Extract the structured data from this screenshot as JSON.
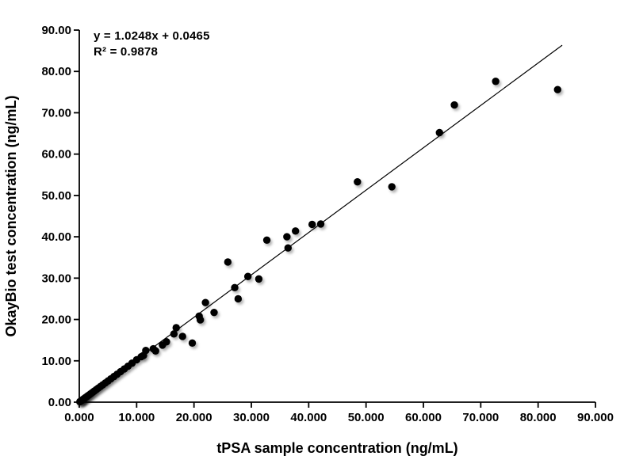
{
  "chart_data": {
    "type": "scatter",
    "title": "",
    "annotation": {
      "equation": "y = 1.0248x + 0.0465",
      "r_squared": "R² = 0.9878"
    },
    "xlabel": "tPSA sample concentration (ng/mL)",
    "ylabel": "OkayBio test concentration (ng/mL)",
    "xlim": [
      0,
      90
    ],
    "ylim": [
      0,
      90
    ],
    "x_ticks": [
      0,
      10,
      20,
      30,
      40,
      50,
      60,
      70,
      80,
      90
    ],
    "x_tick_labels": [
      "0.000",
      "10.000",
      "20.000",
      "30.000",
      "40.000",
      "50.000",
      "60.000",
      "70.000",
      "80.000",
      "90.000"
    ],
    "y_ticks": [
      0,
      10,
      20,
      30,
      40,
      50,
      60,
      70,
      80,
      90
    ],
    "y_tick_labels": [
      "0.00",
      "10.00",
      "20.00",
      "30.00",
      "40.00",
      "50.00",
      "60.00",
      "70.00",
      "80.00",
      "90.00"
    ],
    "grid": false,
    "legend": false,
    "point_color": "#000000",
    "line_color": "#000000",
    "axis_color": "#000000",
    "trendline": {
      "slope": 1.0248,
      "intercept": 0.0465,
      "x_start": 0,
      "x_end": 84.2
    },
    "points": [
      [
        0.1,
        0.1
      ],
      [
        0.2,
        0.21
      ],
      [
        0.31,
        0.32
      ],
      [
        0.42,
        0.43
      ],
      [
        0.55,
        0.56
      ],
      [
        0.7,
        0.72
      ],
      [
        0.88,
        0.9
      ],
      [
        1.05,
        1.08
      ],
      [
        1.25,
        1.28
      ],
      [
        1.5,
        1.54
      ],
      [
        1.75,
        1.79
      ],
      [
        2.0,
        2.05
      ],
      [
        2.3,
        2.36
      ],
      [
        2.6,
        2.66
      ],
      [
        2.95,
        3.02
      ],
      [
        3.3,
        3.38
      ],
      [
        3.7,
        3.79
      ],
      [
        4.1,
        4.2
      ],
      [
        4.55,
        4.66
      ],
      [
        5.0,
        5.12
      ],
      [
        5.5,
        5.64
      ],
      [
        6.05,
        6.2
      ],
      [
        6.6,
        6.76
      ],
      [
        7.2,
        7.38
      ],
      [
        7.85,
        8.04
      ],
      [
        8.5,
        8.71
      ],
      [
        9.2,
        9.43
      ],
      [
        10.0,
        10.25
      ],
      [
        10.8,
        11.0
      ],
      [
        11.2,
        11.3
      ],
      [
        11.6,
        12.5
      ],
      [
        12.9,
        12.9
      ],
      [
        13.3,
        12.4
      ],
      [
        14.5,
        13.8
      ],
      [
        15.2,
        14.6
      ],
      [
        16.5,
        16.5
      ],
      [
        16.9,
        18.0
      ],
      [
        18.0,
        15.9
      ],
      [
        19.7,
        14.3
      ],
      [
        20.9,
        20.8
      ],
      [
        21.1,
        19.9
      ],
      [
        22.0,
        24.1
      ],
      [
        23.5,
        21.7
      ],
      [
        25.9,
        33.9
      ],
      [
        27.1,
        27.7
      ],
      [
        27.7,
        25.0
      ],
      [
        29.4,
        30.4
      ],
      [
        31.3,
        29.8
      ],
      [
        32.7,
        39.2
      ],
      [
        36.2,
        40.0
      ],
      [
        36.4,
        37.3
      ],
      [
        37.7,
        41.4
      ],
      [
        40.6,
        43.0
      ],
      [
        42.1,
        43.1
      ],
      [
        48.5,
        53.3
      ],
      [
        54.5,
        52.1
      ],
      [
        62.8,
        65.2
      ],
      [
        65.4,
        71.9
      ],
      [
        72.6,
        77.6
      ],
      [
        83.4,
        75.6
      ]
    ]
  }
}
